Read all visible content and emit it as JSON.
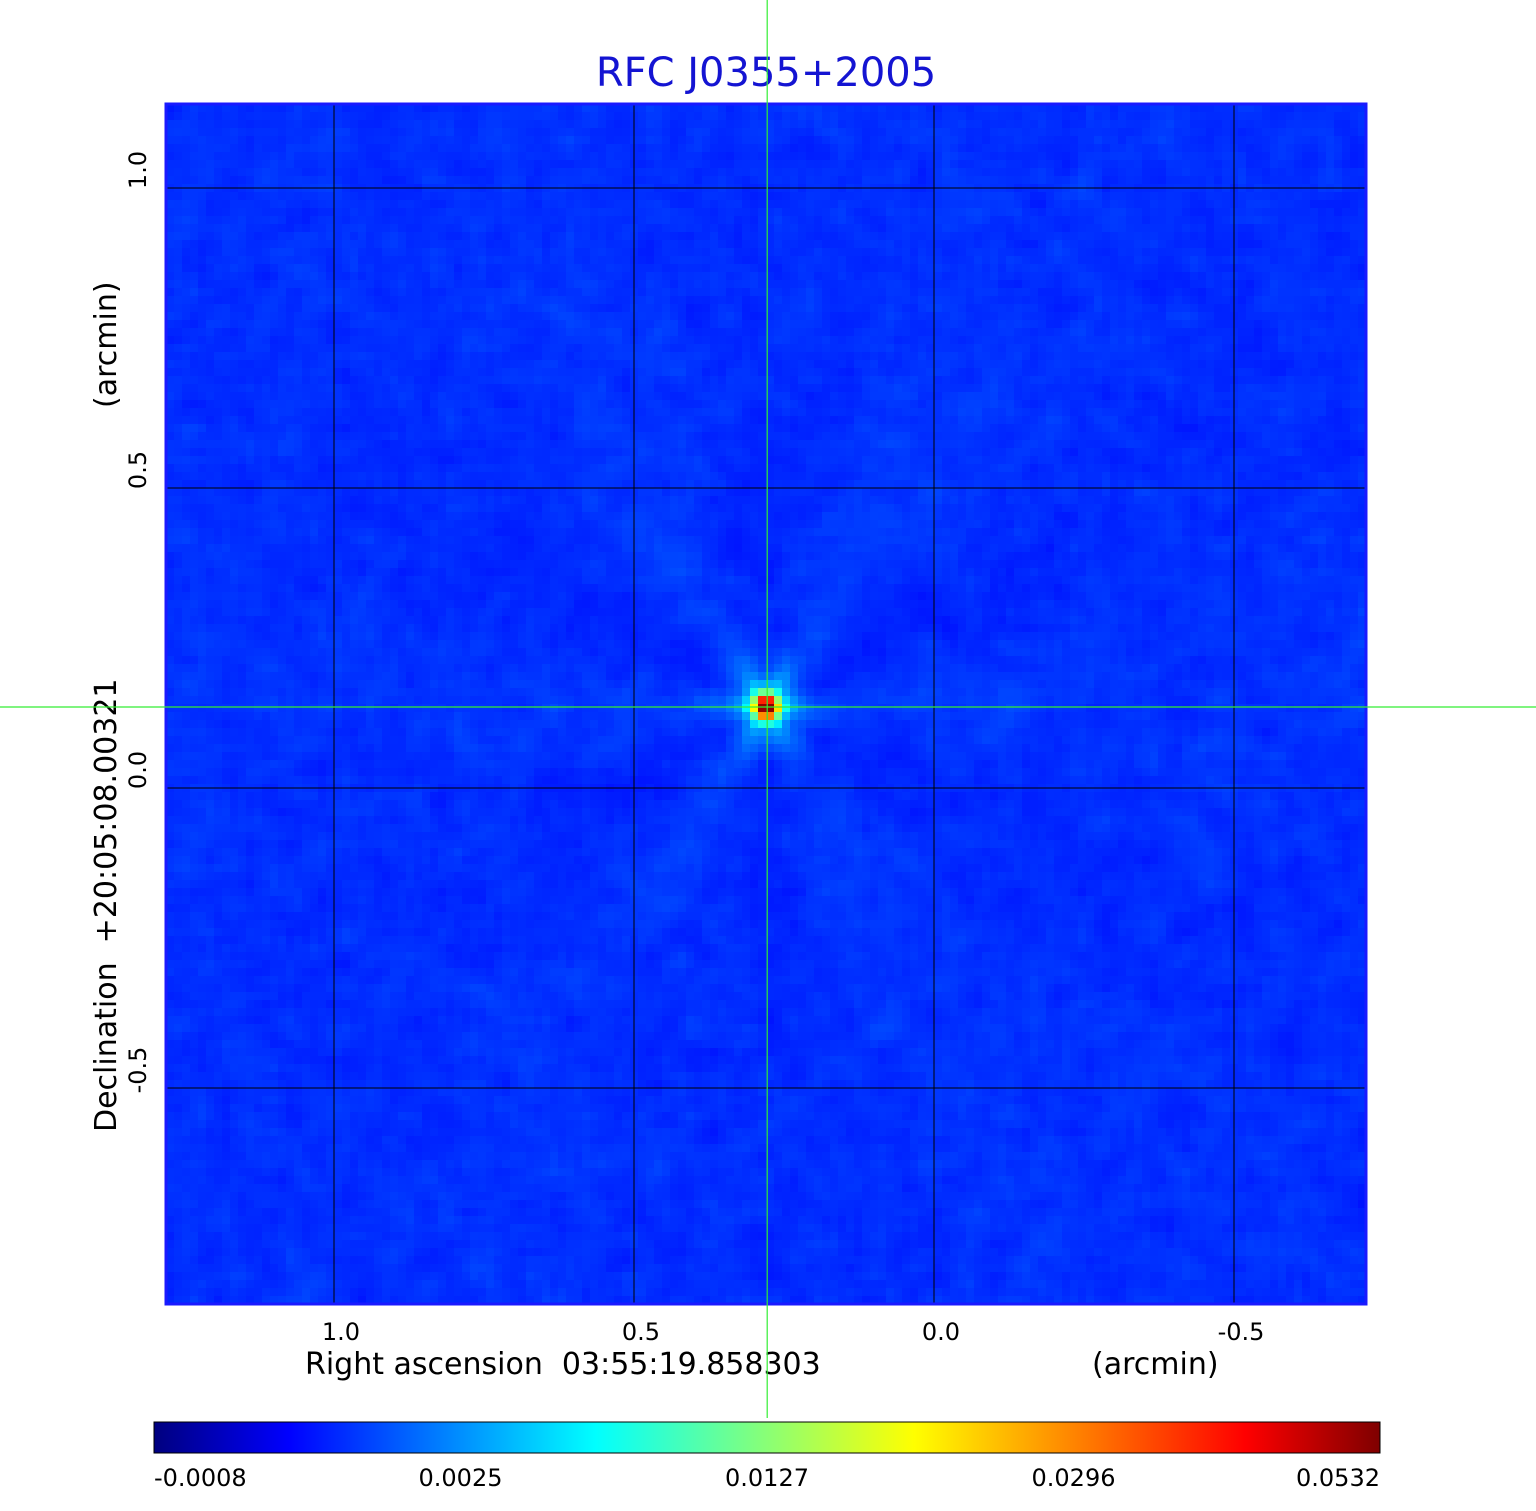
{
  "chart_data": {
    "type": "heatmap",
    "title": "RFC J0355+2005",
    "xlabel": "Right ascension  03:55:19.858303",
    "xunit": "(arcmin)",
    "ylabel": "Declination  +20:05:08.00321",
    "yunit": "(arcmin)",
    "xlim": [
      1.28,
      -0.72
    ],
    "ylim": [
      -0.86,
      1.14
    ],
    "x_reversed": true,
    "x_ticks": [
      {
        "value": 1.0,
        "label": "1.0"
      },
      {
        "value": 0.5,
        "label": "0.5"
      },
      {
        "value": 0.0,
        "label": "0.0"
      },
      {
        "value": -0.5,
        "label": "-0.5"
      }
    ],
    "y_ticks": [
      {
        "value": 1.0,
        "label": "1.0"
      },
      {
        "value": 0.5,
        "label": "0.5"
      },
      {
        "value": 0.0,
        "label": "0.0"
      },
      {
        "value": -0.5,
        "label": "-0.5"
      }
    ],
    "grid": true,
    "grid_color": "#000000",
    "colormap": "jet",
    "colorbar": {
      "orientation": "horizontal",
      "placement": "bottom",
      "tick_labels": [
        "-0.0008",
        "0.0025",
        "0.0127",
        "0.0296",
        "0.0532"
      ]
    },
    "source": {
      "x": 0.28,
      "y": 0.135,
      "peak": 0.0532
    },
    "background_level": 0.0008,
    "crosshair": {
      "x": 0.278,
      "y": 0.135,
      "color": "#33ee33"
    }
  }
}
